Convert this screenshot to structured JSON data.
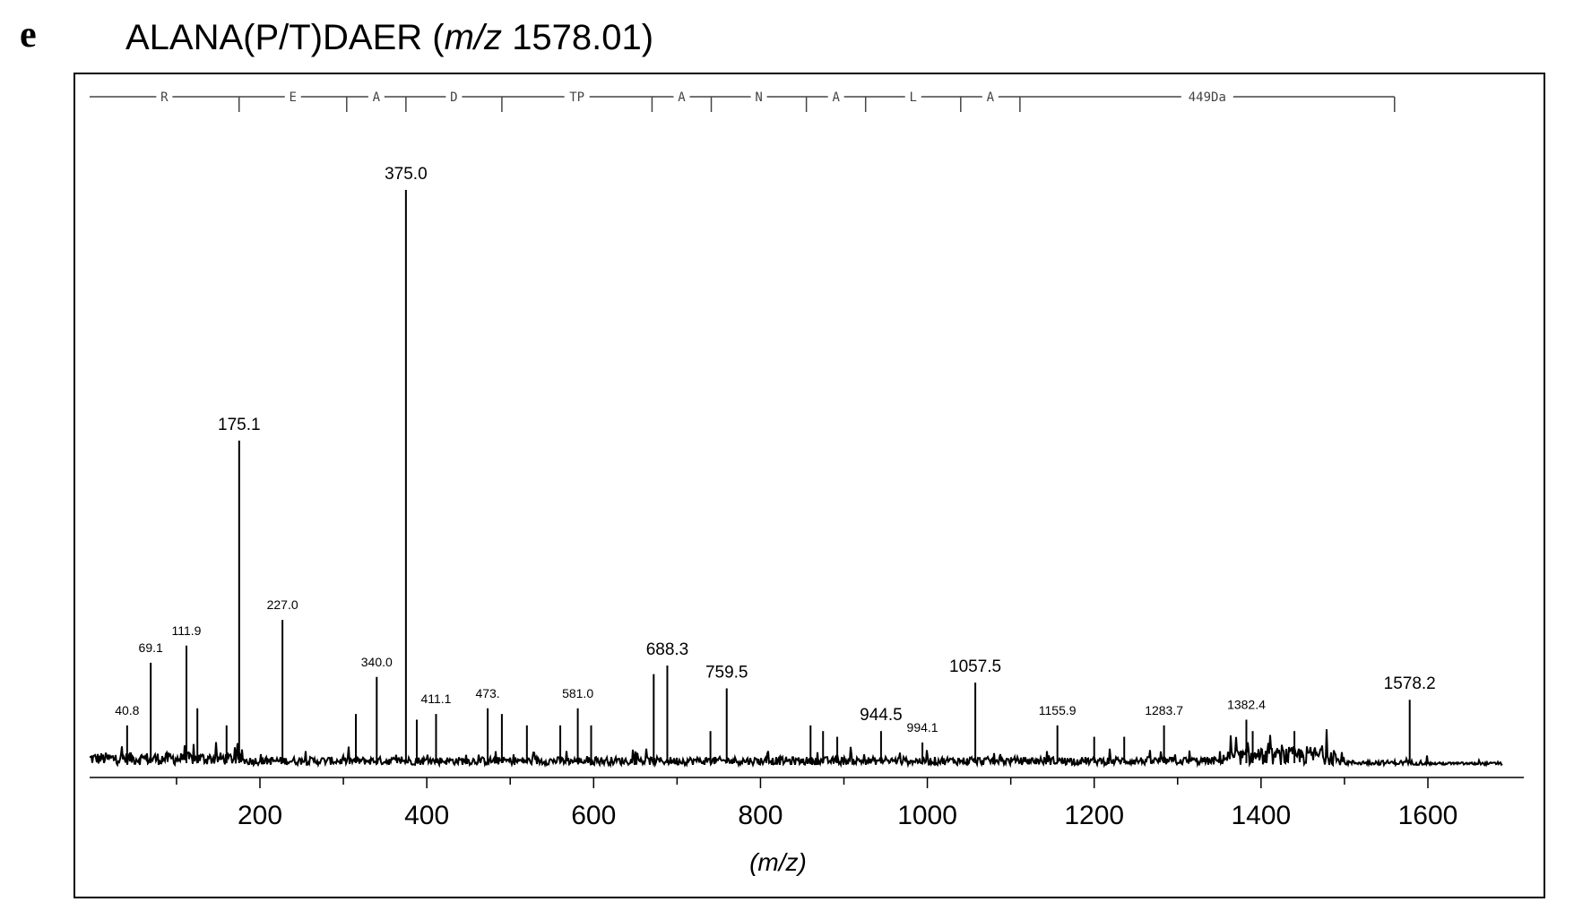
{
  "panel_letter": "e",
  "title": {
    "peptide": "ALANA(P/T)DAER",
    "open": "(",
    "mz_italic": "m/z",
    "precursor": "1578.01",
    "close": ")"
  },
  "colors": {
    "axis": "#000000",
    "trace": "#000000",
    "frame": "#000000",
    "background": "#ffffff"
  },
  "chart_data": {
    "type": "line",
    "title": "ALANA(P/T)DAER (m/z 1578.01)",
    "xlabel": "(m/z)",
    "ylabel": "",
    "xlim": [
      0,
      1660
    ],
    "ylim": [
      0,
      100
    ],
    "x_ticks": [
      200,
      400,
      600,
      800,
      1000,
      1200,
      1400,
      1600
    ],
    "grid": false,
    "legend": "none",
    "sequence_ladder": {
      "boundaries": [
        175,
        304,
        375,
        490,
        670,
        741,
        855,
        926,
        1040,
        1111,
        1560
      ],
      "segments": [
        {
          "label": "R",
          "from": 0,
          "to": 175
        },
        {
          "label": "E",
          "from": 175,
          "to": 304
        },
        {
          "label": "A",
          "from": 304,
          "to": 375
        },
        {
          "label": "D",
          "from": 375,
          "to": 490
        },
        {
          "label": "TP",
          "from": 490,
          "to": 670
        },
        {
          "label": "A",
          "from": 670,
          "to": 741
        },
        {
          "label": "N",
          "from": 741,
          "to": 855
        },
        {
          "label": "A",
          "from": 855,
          "to": 926
        },
        {
          "label": "L",
          "from": 926,
          "to": 1040
        },
        {
          "label": "A",
          "from": 1040,
          "to": 1111
        },
        {
          "label": "449Da",
          "from": 1111,
          "to": 1560
        }
      ]
    },
    "peaks": [
      {
        "mz": 40.8,
        "intensity": 6,
        "label": "40.8"
      },
      {
        "mz": 69.1,
        "intensity": 17,
        "label": "69.1"
      },
      {
        "mz": 111.9,
        "intensity": 20,
        "label": "111.9"
      },
      {
        "mz": 175.1,
        "intensity": 56,
        "label": "175.1"
      },
      {
        "mz": 227.0,
        "intensity": 24.5,
        "label": "227.0"
      },
      {
        "mz": 340.0,
        "intensity": 14.5,
        "label": "340.0"
      },
      {
        "mz": 375.0,
        "intensity": 100,
        "label": "375.0"
      },
      {
        "mz": 411.1,
        "intensity": 8,
        "label": "411.1"
      },
      {
        "mz": 473,
        "intensity": 9,
        "label": "473."
      },
      {
        "mz": 581.0,
        "intensity": 9,
        "label": "581.0"
      },
      {
        "mz": 688.3,
        "intensity": 16.5,
        "label": "688.3"
      },
      {
        "mz": 759.5,
        "intensity": 12.5,
        "label": "759.5"
      },
      {
        "mz": 944.5,
        "intensity": 5,
        "label": "944.5"
      },
      {
        "mz": 994.1,
        "intensity": 3,
        "label": "994.1"
      },
      {
        "mz": 1057.5,
        "intensity": 13.5,
        "label": "1057.5"
      },
      {
        "mz": 1155.9,
        "intensity": 6,
        "label": "1155.9"
      },
      {
        "mz": 1283.7,
        "intensity": 6,
        "label": "1283.7"
      },
      {
        "mz": 1382.4,
        "intensity": 7,
        "label": "1382.4"
      },
      {
        "mz": 1578.2,
        "intensity": 10.5,
        "label": "1578.2"
      }
    ],
    "minor_peaks": [
      {
        "mz": 125,
        "intensity": 9
      },
      {
        "mz": 160,
        "intensity": 6
      },
      {
        "mz": 315,
        "intensity": 8
      },
      {
        "mz": 388,
        "intensity": 7
      },
      {
        "mz": 490,
        "intensity": 8
      },
      {
        "mz": 520,
        "intensity": 6
      },
      {
        "mz": 560,
        "intensity": 6
      },
      {
        "mz": 597,
        "intensity": 6
      },
      {
        "mz": 672,
        "intensity": 15
      },
      {
        "mz": 740,
        "intensity": 5
      },
      {
        "mz": 860,
        "intensity": 6
      },
      {
        "mz": 875,
        "intensity": 5
      },
      {
        "mz": 892,
        "intensity": 4
      },
      {
        "mz": 1200,
        "intensity": 4
      },
      {
        "mz": 1236,
        "intensity": 4
      },
      {
        "mz": 1390,
        "intensity": 5
      },
      {
        "mz": 1440,
        "intensity": 5
      }
    ]
  }
}
